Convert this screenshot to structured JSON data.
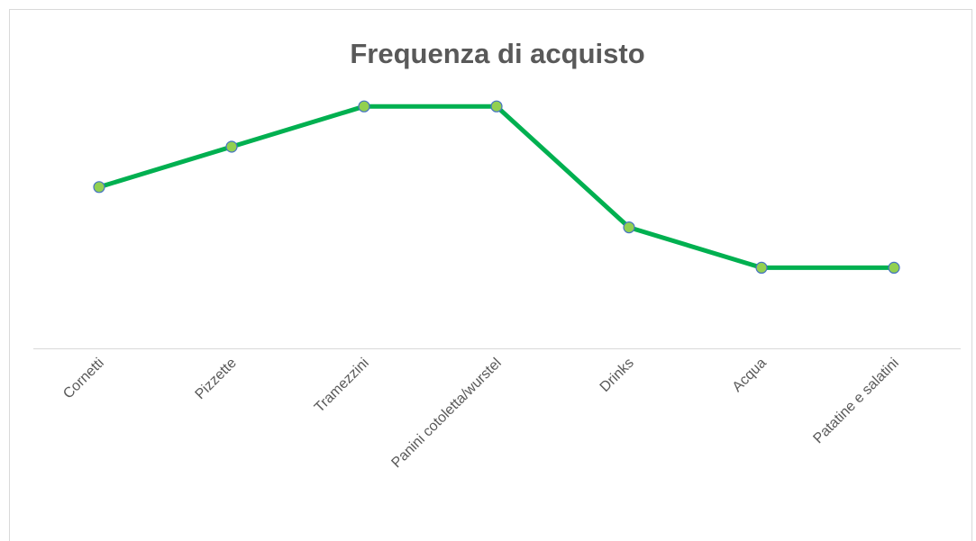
{
  "chart_data": {
    "type": "line",
    "title": "Frequenza di acquisto",
    "categories": [
      "Cornetti",
      "Pizzette",
      "Tramezzini",
      "Panini cotoletta/wurstel",
      "Drinks",
      "Acqua",
      "Patatine e salatini"
    ],
    "values": [
      4,
      5,
      6,
      6,
      3,
      2,
      2
    ],
    "color": "#00b050",
    "marker_fill": "#92d050",
    "marker_stroke": "#4472c4",
    "ylim": [
      0,
      7
    ],
    "grid": false
  }
}
